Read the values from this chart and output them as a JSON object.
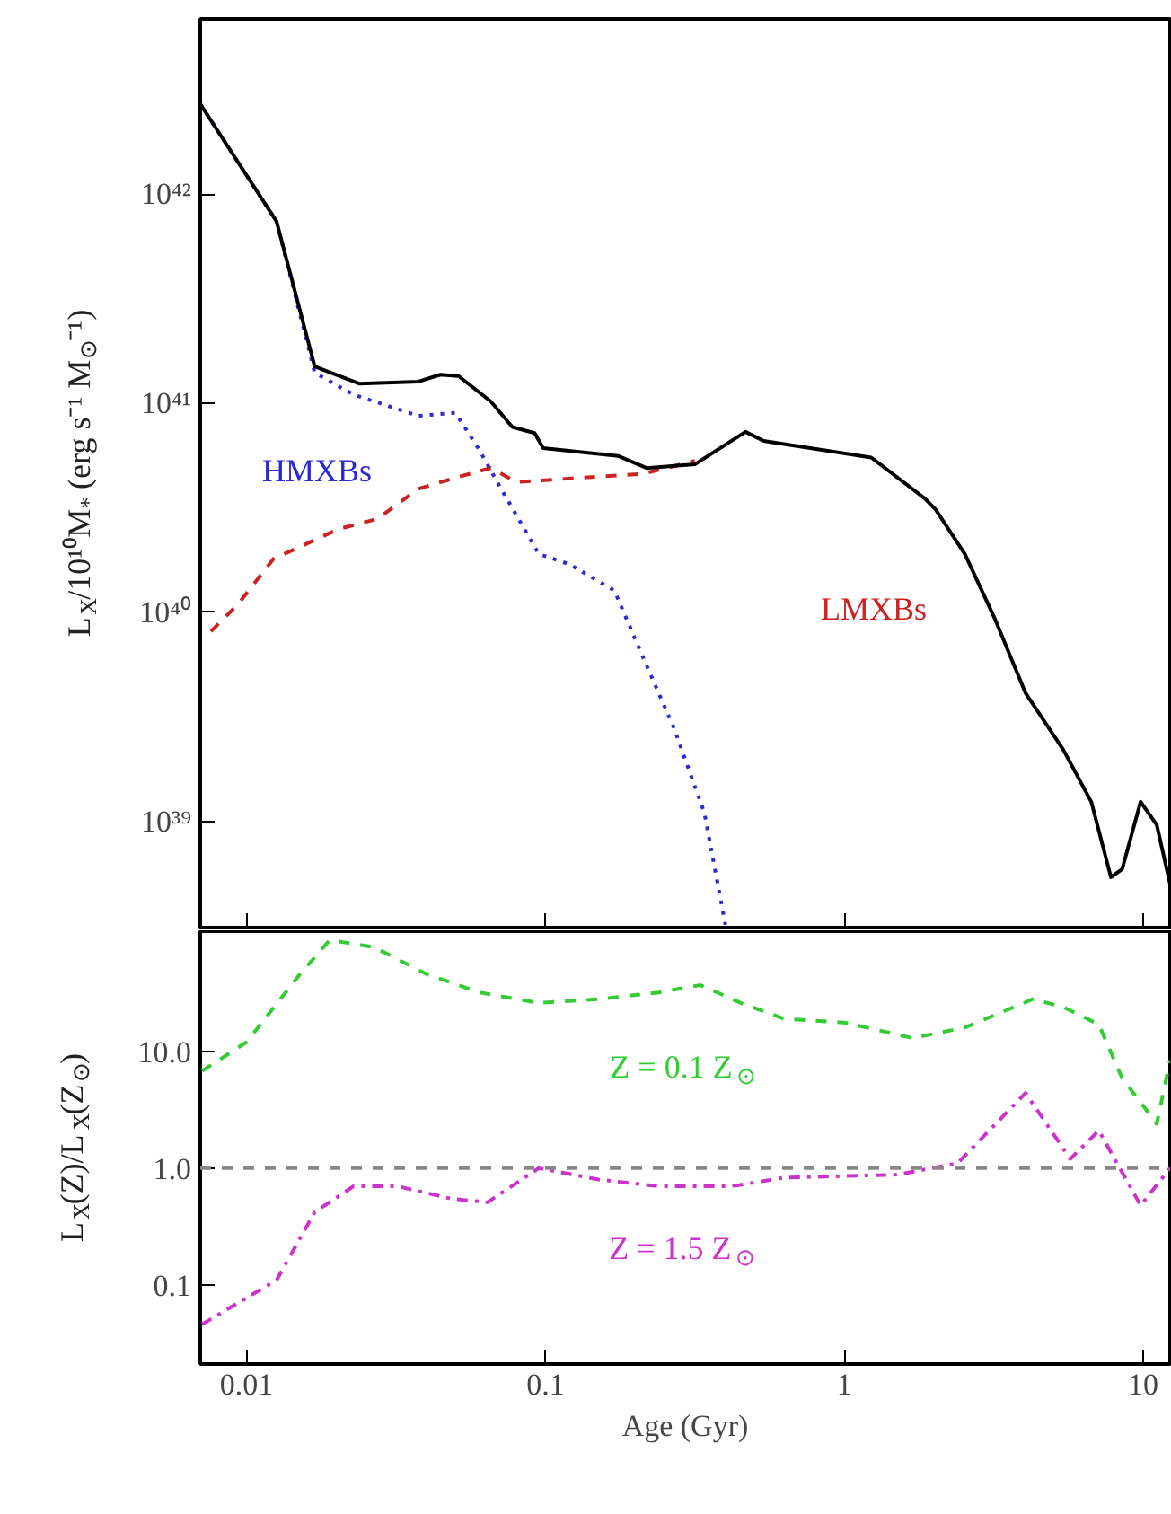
{
  "chart_data": [
    {
      "type": "line",
      "ylabel": "L$_{X}$/10¹⁰M$_{*}$ (erg s⁻¹ M$_{⊙}$⁻¹)",
      "log": "xy",
      "grid": false,
      "legend": false,
      "tick_labels": "y",
      "xlim": [
        0.007,
        12.3
      ],
      "ylim": [
        3.1e+38,
        6.9e+42
      ],
      "xticks": [
        0.01,
        0.1,
        1,
        10
      ],
      "yticks": [
        {
          "value": 1e+39,
          "label": "10³⁹"
        },
        {
          "value": 1e+40,
          "label": "10⁴⁰"
        },
        {
          "value": 1e+41,
          "label": "10⁴¹"
        },
        {
          "value": 1e+42,
          "label": "10⁴²"
        }
      ],
      "series": [
        {
          "name": "LMXBs",
          "color": "#cc2222",
          "line_style": "dashed",
          "x": [
            0.0076,
            0.0094,
            0.0123,
            0.0203,
            0.0274,
            0.0376,
            0.05,
            0.0656,
            0.08,
            0.212,
            0.316
          ],
          "values": [
            8.1e+39,
            1.1e+40,
            1.8e+40,
            2.5e+40,
            2.8e+40,
            3.9e+40,
            4.4e+40,
            4.9e+40,
            4.2e+40,
            4.6e+40,
            5.3e+40
          ]
        },
        {
          "name": "HMXBs",
          "color": "#2a2ad0",
          "line_style": "dotted",
          "x": [
            0.007,
            0.0126,
            0.0169,
            0.0228,
            0.0376,
            0.05,
            0.06,
            0.069,
            0.095,
            0.12,
            0.17,
            0.212,
            0.269,
            0.34,
            0.4
          ],
          "values": [
            2.7e+42,
            7.4e+41,
            1.4e+41,
            1.1e+41,
            8.7e+40,
            9e+40,
            6e+40,
            4.2e+40,
            1.9e+40,
            1.7e+40,
            1.27e+40,
            6.1e+39,
            2.8e+39,
            1.1e+39,
            3.2e+38
          ]
        },
        {
          "color": "#000000",
          "line_style": "solid",
          "x": [
            0.007,
            0.0126,
            0.0169,
            0.0239,
            0.0376,
            0.0445,
            0.0512,
            0.0656,
            0.0775,
            0.092,
            0.0983,
            0.175,
            0.218,
            0.316,
            0.467,
            0.537,
            1.23,
            1.86,
            2.02,
            2.53,
            3.19,
            4.04,
            5.4,
            6.7,
            7.8,
            8.5,
            9.8,
            11.1,
            12.3
          ],
          "values": [
            2.7e+42,
            7.4e+41,
            1.5e+41,
            1.24e+41,
            1.27e+41,
            1.37e+41,
            1.35e+41,
            1.02e+41,
            7.7e+40,
            7.2e+40,
            6.1e+40,
            5.6e+40,
            4.9e+40,
            5.1e+40,
            7.3e+40,
            6.6e+40,
            5.5e+40,
            3.5e+40,
            3.1e+40,
            1.9e+40,
            9.3e+39,
            4.1e+39,
            2.2e+39,
            1.24e+39,
            5.4e+38,
            5.9e+38,
            1.24e+39,
            9.6e+38,
            5e+38
          ]
        }
      ]
    },
    {
      "type": "line",
      "xlabel": "Age (Gyr)",
      "ylabel": "L$_{X}$(Z)/L$_{X}$(Z$_{⊙}$)",
      "log": "xy",
      "grid": false,
      "legend": false,
      "xlim": [
        0.007,
        12.3
      ],
      "ylim": [
        0.021,
        107
      ],
      "xticks": [
        0.01,
        0.1,
        1,
        10
      ],
      "yticks": [
        {
          "value": 0.1,
          "label": "0.1"
        },
        {
          "value": 1,
          "label": "1.0"
        },
        {
          "value": 10,
          "label": "10.0"
        }
      ],
      "ref_lines": [
        {
          "axis": "y",
          "value": 1,
          "color": "#888888",
          "line_style": "dashed"
        }
      ],
      "series": [
        {
          "name": "Z = 0.1 Z$_{⊙}$",
          "color": "#33cc33",
          "line_style": "dashed",
          "x": [
            0.0071,
            0.01,
            0.0151,
            0.019,
            0.0267,
            0.04,
            0.06,
            0.095,
            0.15,
            0.24,
            0.33,
            0.45,
            0.63,
            1.01,
            1.69,
            2.53,
            4.27,
            5.4,
            7.1,
            8.5,
            11.1,
            12.3
          ],
          "values": [
            6.8,
            12,
            46,
            90,
            78,
            46,
            32,
            26,
            28,
            32,
            37,
            26,
            19,
            17.6,
            13,
            16,
            28,
            24,
            17,
            5.9,
            2.4,
            8.4
          ]
        },
        {
          "name": "Z = 1.5 Z$_{⊙}$",
          "color": "#cc33cc",
          "line_style": "dashdot",
          "x": [
            0.0071,
            0.0126,
            0.0169,
            0.0228,
            0.032,
            0.048,
            0.064,
            0.095,
            0.15,
            0.24,
            0.42,
            0.63,
            1.51,
            2.39,
            4.04,
            5.7,
            7.1,
            9.8,
            12.3
          ],
          "values": [
            0.046,
            0.11,
            0.42,
            0.7,
            0.7,
            0.55,
            0.51,
            1.0,
            0.8,
            0.7,
            0.7,
            0.83,
            0.88,
            1.1,
            4.4,
            1.2,
            2.1,
            0.48,
            1.0
          ]
        }
      ]
    }
  ]
}
